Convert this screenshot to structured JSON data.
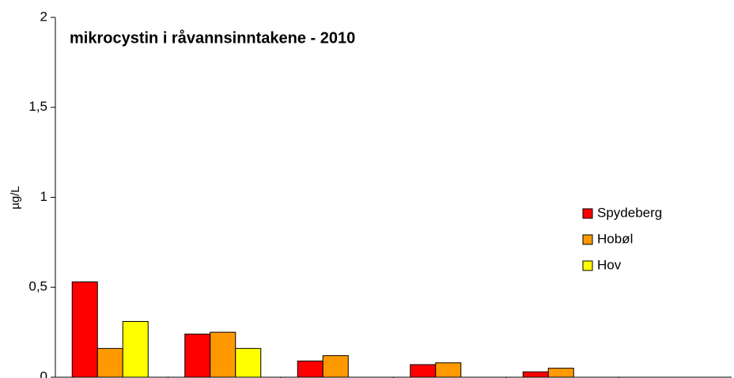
{
  "chart_data": {
    "type": "bar",
    "title": "mikrocystin i råvannsinntakene - 2010",
    "y_label": "µg/L",
    "categories": [
      null,
      null,
      null,
      null,
      null,
      null
    ],
    "series": [
      {
        "name": "Spydeberg",
        "color": "#ff0000",
        "values": [
          0.53,
          0.24,
          0.09,
          0.07,
          0.03,
          null
        ]
      },
      {
        "name": "Hobøl",
        "color": "#ff9900",
        "values": [
          0.16,
          0.25,
          0.12,
          0.08,
          0.05,
          null
        ]
      },
      {
        "name": "Hov",
        "color": "#ffff00",
        "values": [
          0.31,
          0.16,
          null,
          null,
          null,
          null
        ]
      }
    ],
    "ylim": [
      0,
      2
    ],
    "yticks": [
      0,
      {
        "value": 0.5,
        "label": "0,5"
      },
      1,
      {
        "value": 1.5,
        "label": "1,5"
      },
      2
    ],
    "grid": false,
    "legend": "right"
  }
}
